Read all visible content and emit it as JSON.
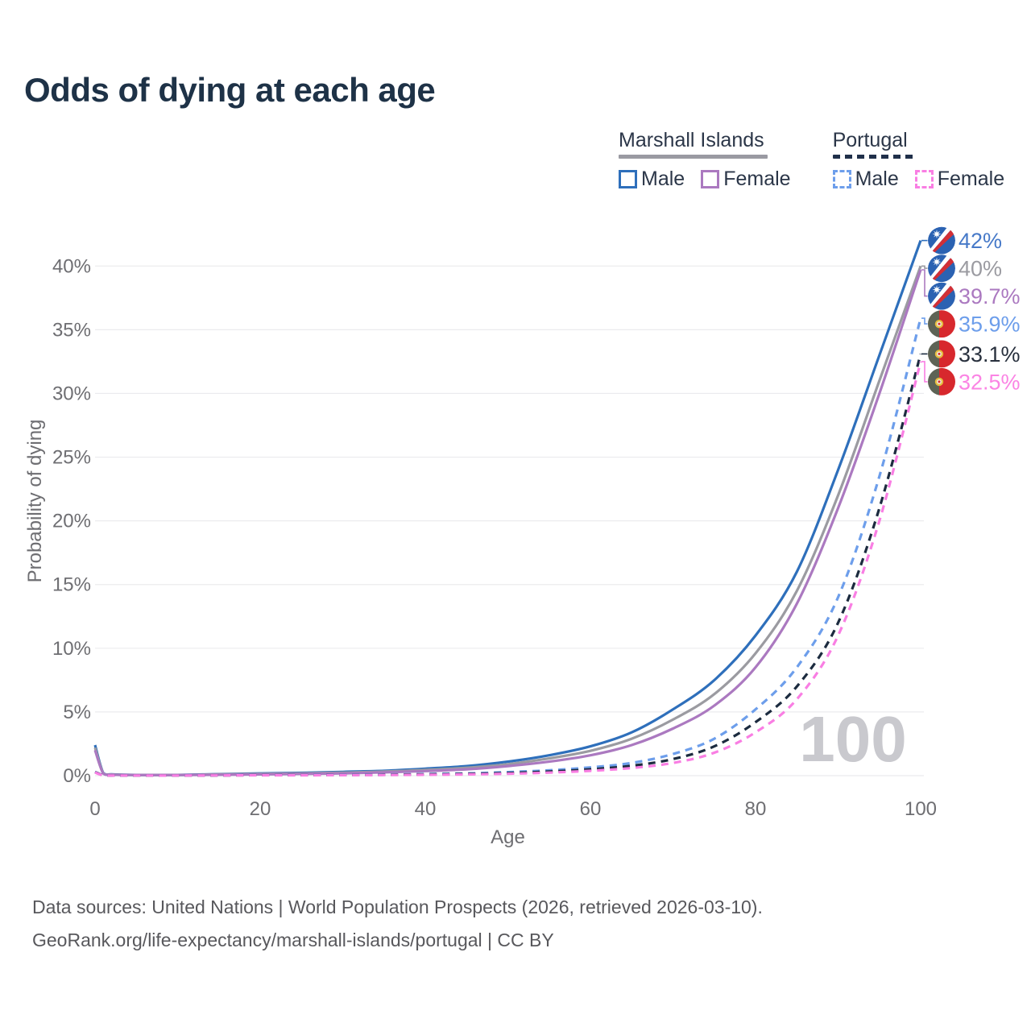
{
  "title": "Odds of dying at each age",
  "legend": {
    "groups": [
      {
        "name": "Marshall Islands",
        "line_style": "solid",
        "line_color": "#9a9aa2",
        "items": [
          {
            "label": "Male",
            "color": "#2e6fbb",
            "dashed": false
          },
          {
            "label": "Female",
            "color": "#ab79c0",
            "dashed": false
          }
        ]
      },
      {
        "name": "Portugal",
        "line_style": "dashed",
        "line_color": "#20304a",
        "items": [
          {
            "label": "Male",
            "color": "#6d9eeb",
            "dashed": true
          },
          {
            "label": "Female",
            "color": "#f97ee3",
            "dashed": true
          }
        ]
      }
    ]
  },
  "chart_data": {
    "type": "line",
    "title": "Odds of dying at each age",
    "xlabel": "Age",
    "ylabel": "Probability of dying",
    "xlim": [
      0,
      100
    ],
    "ylim": [
      0,
      43
    ],
    "x_ticks": [
      0,
      20,
      40,
      60,
      80,
      100
    ],
    "y_ticks": [
      0,
      5,
      10,
      15,
      20,
      25,
      30,
      35,
      40
    ],
    "y_tick_suffix": "%",
    "grid": "horizontal",
    "grid_color": "#ebebee",
    "tick_color": "#6e6e72",
    "watermark": "100",
    "watermark_color": "#c9c9ce",
    "x": [
      0,
      1,
      2,
      3,
      5,
      10,
      15,
      20,
      25,
      30,
      35,
      40,
      45,
      50,
      55,
      60,
      65,
      70,
      75,
      80,
      85,
      90,
      95,
      100
    ],
    "series": [
      {
        "name": "Marshall Islands Male",
        "country": "Marshall Islands",
        "sex": "Male",
        "flag": "mh",
        "dashed": false,
        "color": "#2e6fbb",
        "label_color": "#4679c8",
        "end_label": "42%",
        "values": [
          2.4,
          0.2,
          0.1,
          0.08,
          0.06,
          0.06,
          0.12,
          0.18,
          0.22,
          0.3,
          0.38,
          0.55,
          0.75,
          1.1,
          1.6,
          2.3,
          3.4,
          5.2,
          7.5,
          11,
          16,
          24,
          33,
          42
        ]
      },
      {
        "name": "Marshall Islands",
        "country": "Marshall Islands",
        "sex": "All",
        "flag": "mh",
        "dashed": false,
        "color": "#9b9ba1",
        "label_color": "#9b9ba1",
        "end_label": "40%",
        "values": [
          2.2,
          0.18,
          0.09,
          0.07,
          0.05,
          0.05,
          0.1,
          0.14,
          0.18,
          0.24,
          0.32,
          0.45,
          0.62,
          0.9,
          1.35,
          1.95,
          2.9,
          4.4,
          6.4,
          9.6,
          14.5,
          22,
          31,
          40
        ]
      },
      {
        "name": "Marshall Islands Female",
        "country": "Marshall Islands",
        "sex": "Female",
        "flag": "mh",
        "dashed": false,
        "color": "#ab79c0",
        "label_color": "#ab79c0",
        "end_label": "39.7%",
        "values": [
          2.0,
          0.16,
          0.08,
          0.06,
          0.05,
          0.05,
          0.07,
          0.1,
          0.14,
          0.18,
          0.26,
          0.36,
          0.5,
          0.75,
          1.1,
          1.6,
          2.4,
          3.7,
          5.5,
          8.5,
          13.5,
          21,
          30,
          39.7
        ]
      },
      {
        "name": "Portugal Male",
        "country": "Portugal",
        "sex": "Male",
        "flag": "pt",
        "dashed": true,
        "color": "#6d9eeb",
        "label_color": "#6d9eeb",
        "end_label": "35.9%",
        "values": [
          0.3,
          0.03,
          0.02,
          0.01,
          0.01,
          0.01,
          0.03,
          0.05,
          0.06,
          0.07,
          0.09,
          0.13,
          0.18,
          0.28,
          0.42,
          0.65,
          1.0,
          1.7,
          2.9,
          5.2,
          8.5,
          14,
          23.5,
          35.9
        ]
      },
      {
        "name": "Portugal",
        "country": "Portugal",
        "sex": "All",
        "flag": "pt",
        "dashed": true,
        "color": "#1c2b3f",
        "label_color": "#28303d",
        "end_label": "33.1%",
        "values": [
          0.28,
          0.03,
          0.01,
          0.01,
          0.01,
          0.01,
          0.02,
          0.04,
          0.04,
          0.05,
          0.07,
          0.1,
          0.14,
          0.21,
          0.32,
          0.5,
          0.78,
          1.3,
          2.3,
          4.2,
          7.0,
          12,
          21,
          33.1
        ]
      },
      {
        "name": "Portugal Female",
        "country": "Portugal",
        "sex": "Female",
        "flag": "pt",
        "dashed": true,
        "color": "#f97ee3",
        "label_color": "#fb84e4",
        "end_label": "32.5%",
        "values": [
          0.25,
          0.02,
          0.01,
          0.01,
          0.01,
          0.01,
          0.02,
          0.03,
          0.03,
          0.04,
          0.05,
          0.07,
          0.1,
          0.15,
          0.24,
          0.38,
          0.6,
          1.0,
          1.8,
          3.4,
          6.0,
          11,
          20,
          32.5
        ]
      }
    ]
  },
  "footer": {
    "line1": "Data sources: United Nations | World Population Prospects (2026, retrieved 2026-03-10).",
    "line2": "GeoRank.org/life-expectancy/marshall-islands/portugal | CC BY"
  }
}
